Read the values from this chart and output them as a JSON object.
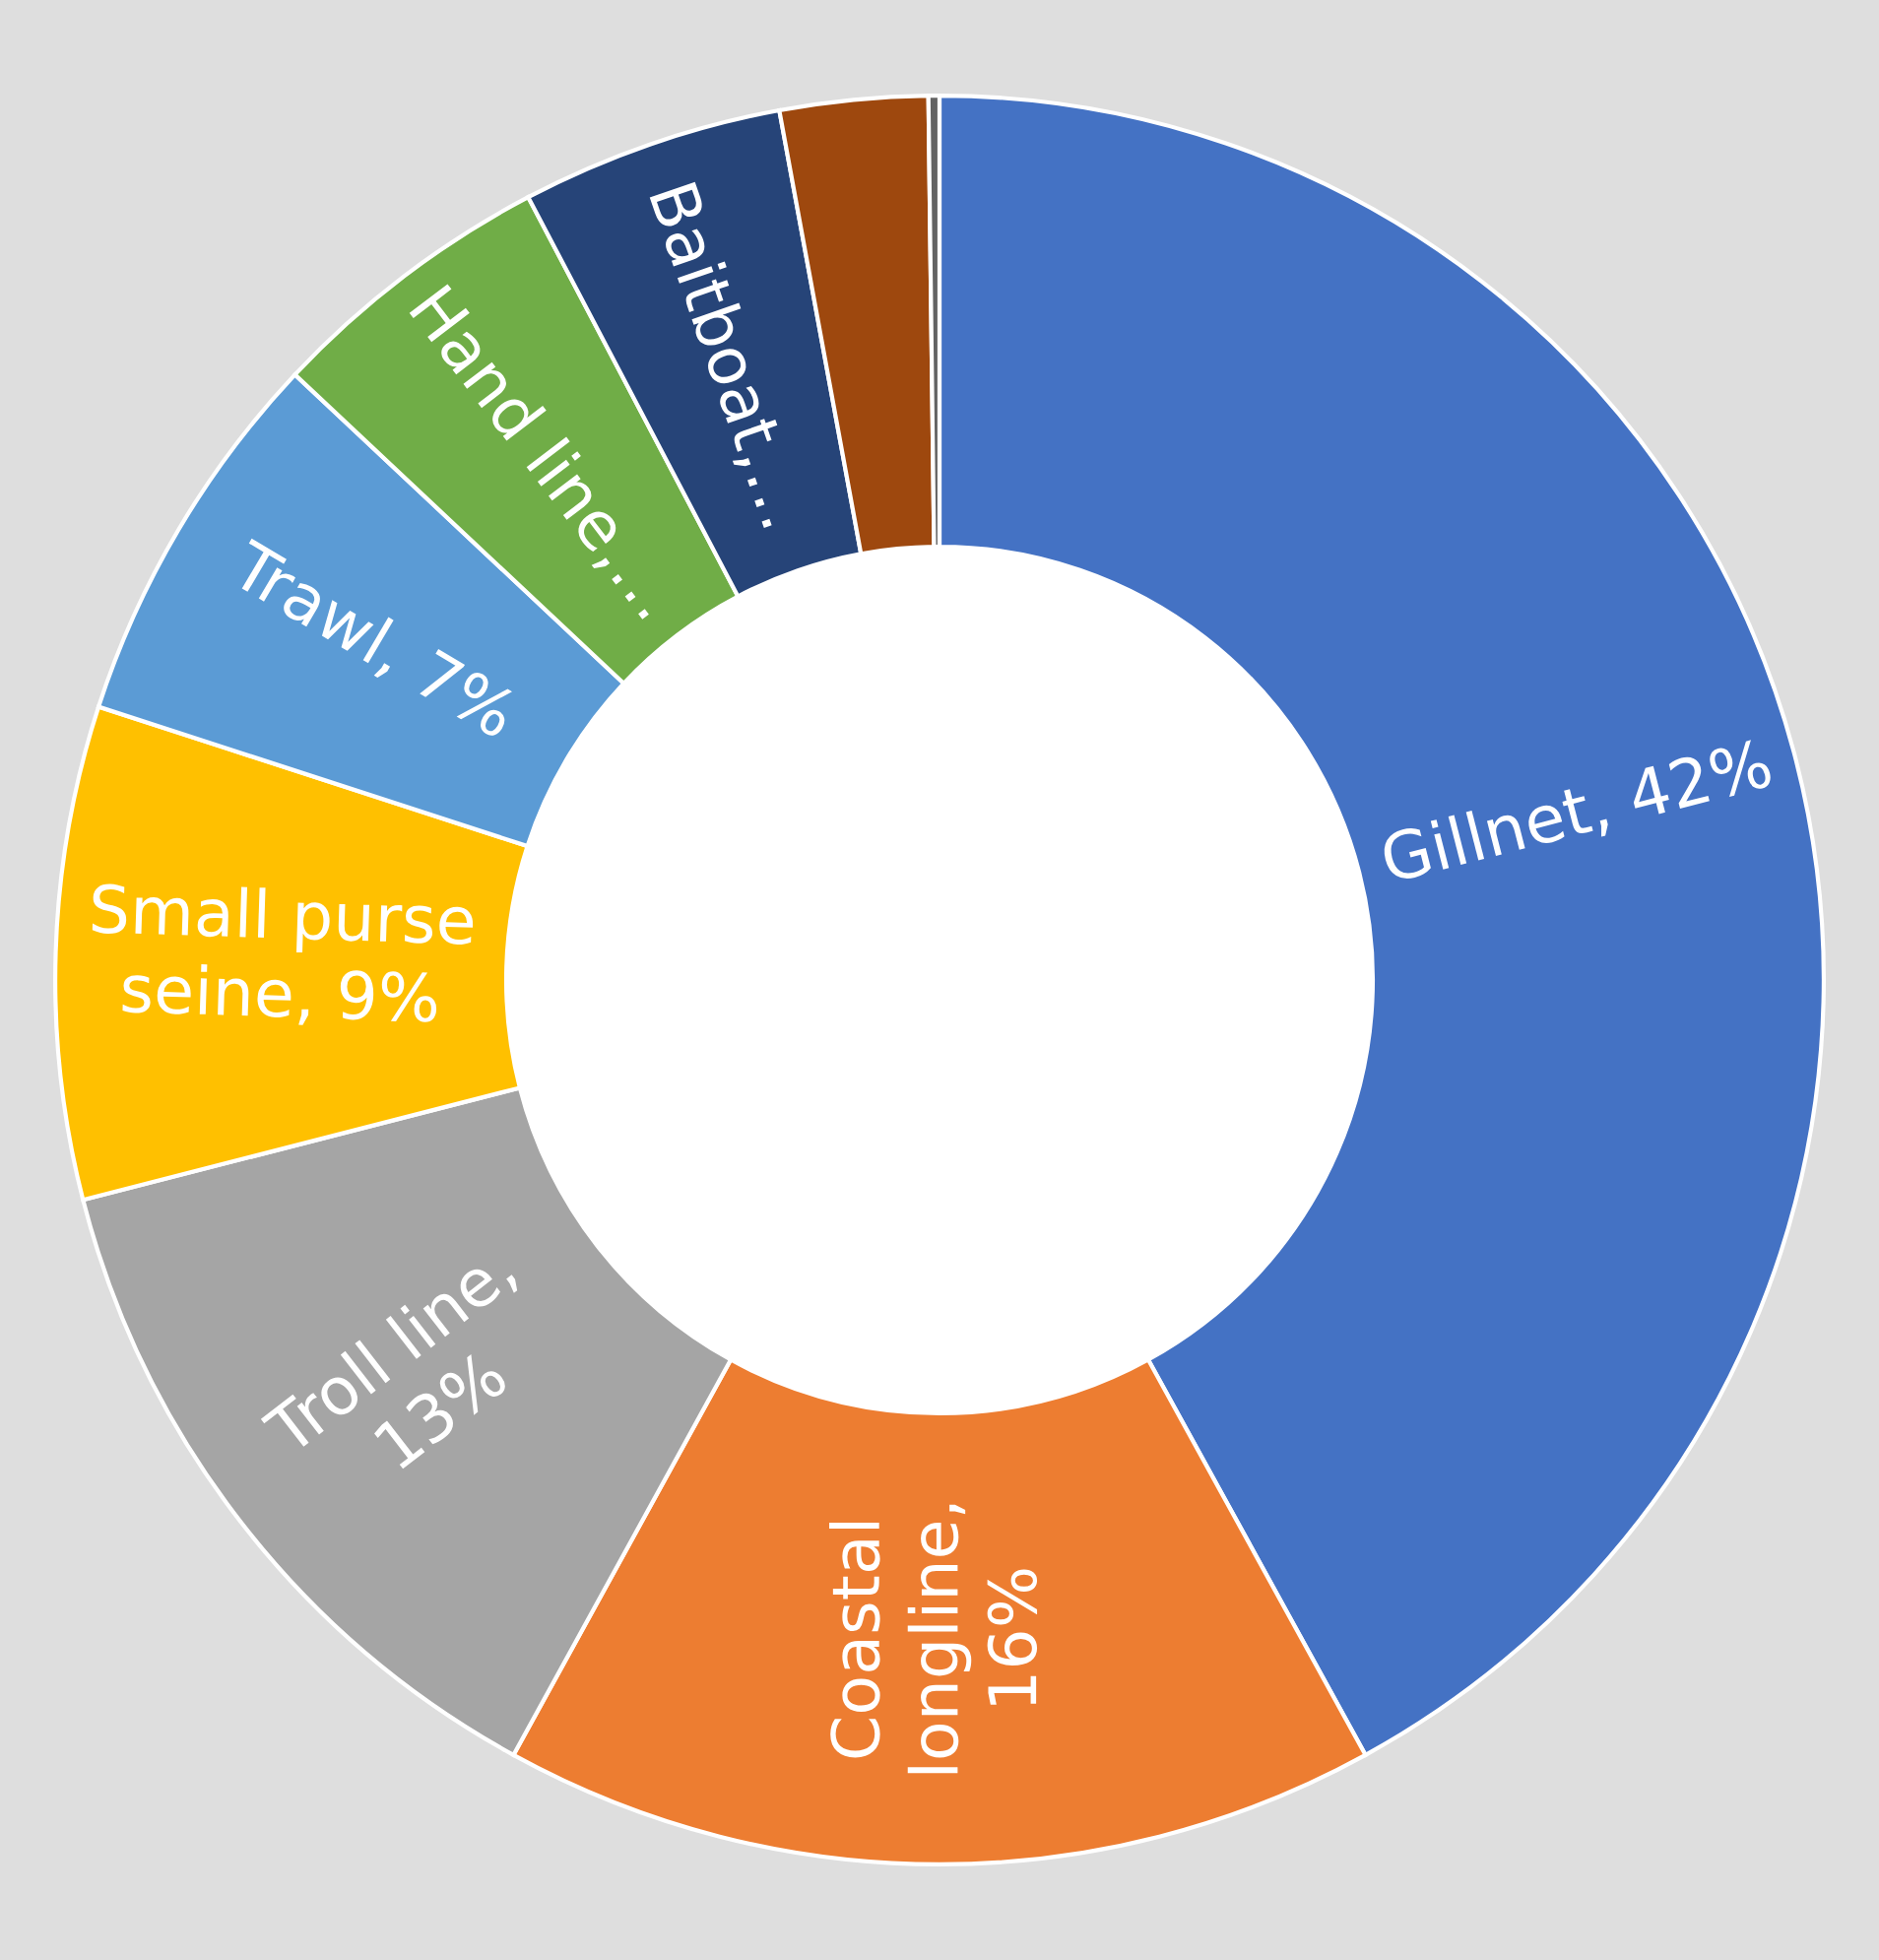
{
  "chart_data": {
    "type": "donut",
    "categories": [
      null,
      null,
      null,
      null,
      null,
      null,
      null,
      null,
      null
    ],
    "values": [
      42,
      16,
      13,
      9,
      7,
      5.3,
      4.8,
      2.7,
      0.2
    ],
    "colors": [
      "#4472c4",
      "#ed7d31",
      "#a5a5a5",
      "#ffc000",
      "#5b9bd5",
      "#70ad47",
      "#264478",
      "#9e480e",
      "#636363"
    ],
    "value_labels": [
      "Gillnet, 42%",
      "Coastal\nlongline,\n16%",
      "Troll line,\n13%",
      "Small purse\nseine, 9%",
      "Trawl, 7%",
      "Hand line,…",
      "Baitboat,…",
      null,
      null
    ]
  }
}
